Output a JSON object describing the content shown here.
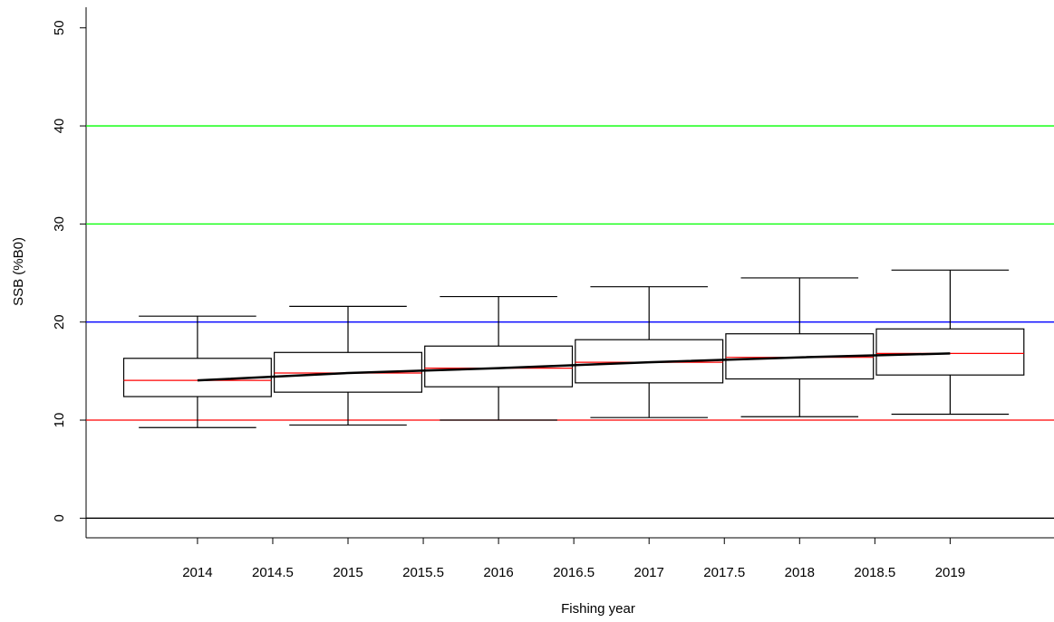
{
  "chart_data": {
    "type": "boxplot",
    "x_label": "Fishing year",
    "y_label": "SSB (%B0)",
    "x": [
      2014,
      2015,
      2016,
      2017,
      2018,
      2019
    ],
    "boxes": [
      {
        "min": 9.24,
        "q1": 12.4,
        "median": 14.05,
        "q3": 16.3,
        "max": 20.6
      },
      {
        "min": 9.5,
        "q1": 12.85,
        "median": 14.8,
        "q3": 16.9,
        "max": 21.6
      },
      {
        "min": 10.0,
        "q1": 13.4,
        "median": 15.3,
        "q3": 17.55,
        "max": 22.6
      },
      {
        "min": 10.26,
        "q1": 13.8,
        "median": 15.9,
        "q3": 18.2,
        "max": 23.6
      },
      {
        "min": 10.35,
        "q1": 14.2,
        "median": 16.4,
        "q3": 18.8,
        "max": 24.5
      },
      {
        "min": 10.6,
        "q1": 14.6,
        "median": 16.8,
        "q3": 19.3,
        "max": 25.3
      }
    ],
    "box_color": "#000000",
    "median_color": "#ff0000",
    "trend": {
      "color": "#000000",
      "values": [
        14.05,
        14.8,
        15.3,
        15.9,
        16.4,
        16.8
      ]
    },
    "reference_lines": [
      {
        "value": 0,
        "color": "#000000"
      },
      {
        "value": 10,
        "color": "#ff0000"
      },
      {
        "value": 20,
        "color": "#0000ff"
      },
      {
        "value": 30,
        "color": "#00ff00"
      },
      {
        "value": 40,
        "color": "#00ff00"
      }
    ],
    "xlim": [
      2013.26,
      2019.69
    ],
    "xticks": [
      2014,
      2014.5,
      2015,
      2015.5,
      2016,
      2016.5,
      2017,
      2017.5,
      2018,
      2018.5,
      2019
    ],
    "ylim": [
      -2,
      52.1
    ],
    "yticks": [
      0,
      10,
      20,
      30,
      40,
      50
    ]
  }
}
